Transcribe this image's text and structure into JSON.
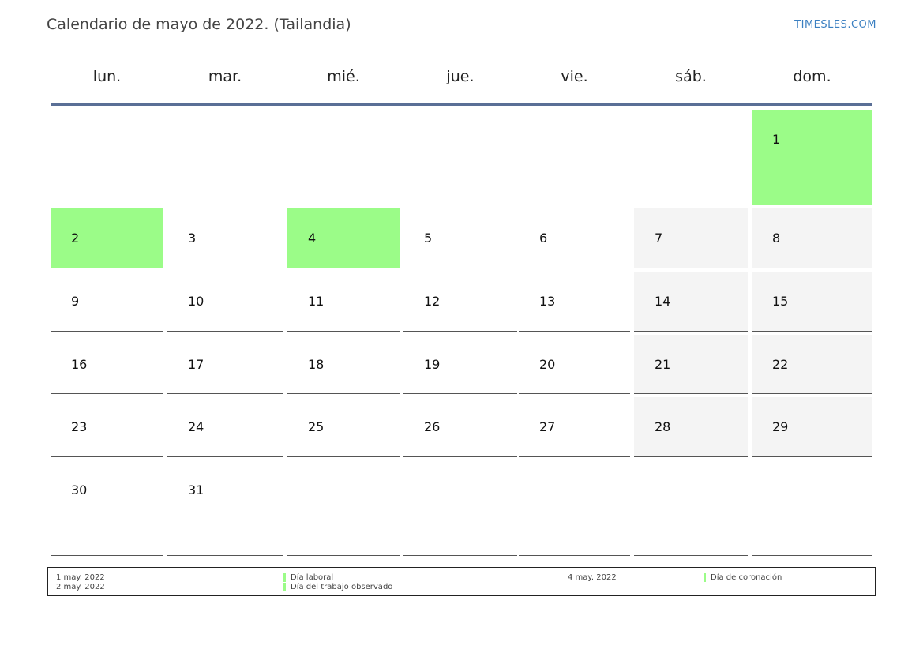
{
  "title": "Calendario de mayo de 2022. (Tailandia)",
  "brand": "TIMESLES.COM",
  "weekdays": [
    "lun.",
    "mar.",
    "mié.",
    "jue.",
    "vie.",
    "sáb.",
    "dom."
  ],
  "weeks": [
    [
      null,
      null,
      null,
      null,
      null,
      null,
      1
    ],
    [
      2,
      3,
      4,
      5,
      6,
      7,
      8
    ],
    [
      9,
      10,
      11,
      12,
      13,
      14,
      15
    ],
    [
      16,
      17,
      18,
      19,
      20,
      21,
      22
    ],
    [
      23,
      24,
      25,
      26,
      27,
      28,
      29
    ],
    [
      30,
      31,
      null,
      null,
      null,
      null,
      null
    ]
  ],
  "holidays": [
    1,
    2,
    4
  ],
  "colors": {
    "holiday": "#9bfc88",
    "weekend": "#f4f4f4",
    "header_line": "#5a6f96",
    "brand": "#3a7fc1"
  },
  "legend": {
    "dates_left": [
      "1 may. 2022",
      "2 may. 2022"
    ],
    "names_left": [
      "Día laboral",
      "Día del trabajo observado"
    ],
    "dates_right": [
      "4 may. 2022"
    ],
    "names_right": [
      "Día de coronación"
    ]
  }
}
